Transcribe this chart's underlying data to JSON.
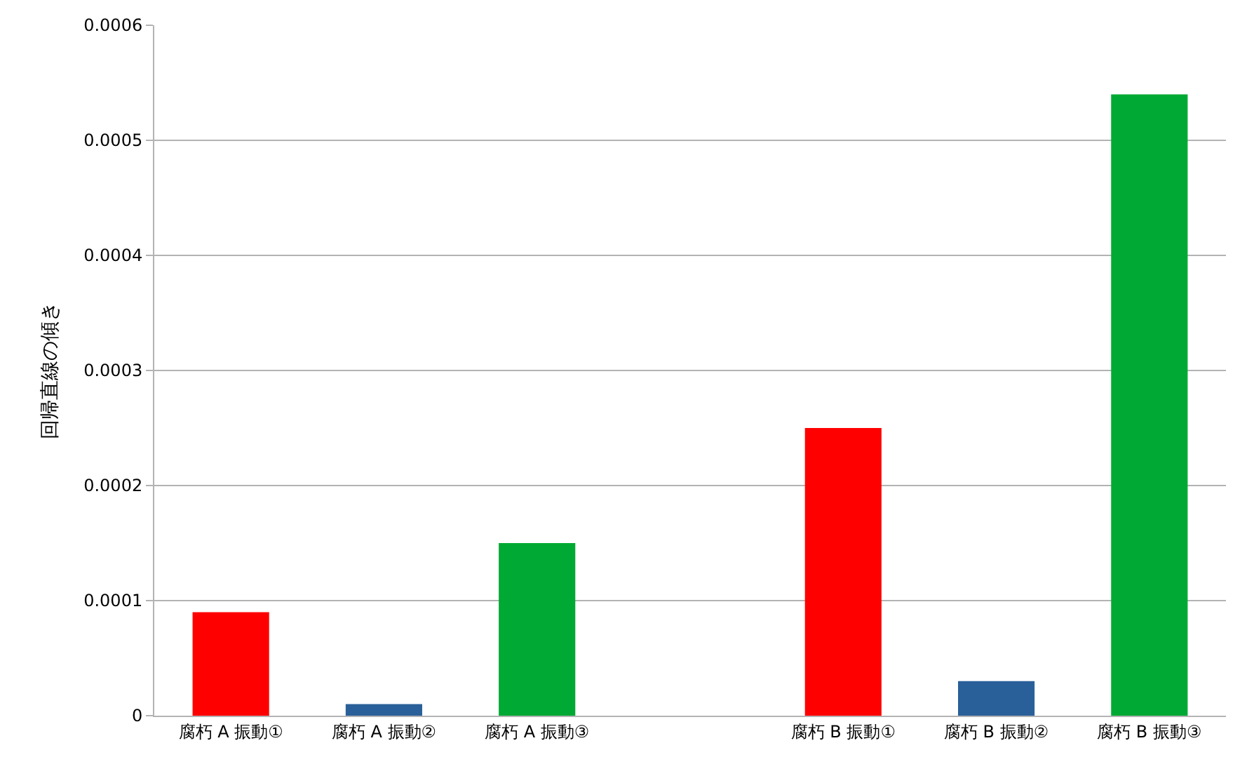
{
  "chart_data": {
    "type": "bar",
    "ylabel": "回帰直線の傾き",
    "categories": [
      "腐朽 A 振動①",
      "腐朽 A 振動②",
      "腐朽 A 振動③",
      null,
      "腐朽 B 振動①",
      "腐朽 B 振動②",
      "腐朽 B 振動③"
    ],
    "values": [
      9e-05,
      1e-05,
      0.00015,
      null,
      0.00025,
      3e-05,
      0.00054
    ],
    "colors": [
      "#ff0000",
      "#2a6099",
      "#00a933",
      null,
      "#ff0000",
      "#2a6099",
      "#00a933"
    ],
    "ylim": [
      0,
      0.0006
    ],
    "yticks": [
      0,
      0.0001,
      0.0002,
      0.0003,
      0.0004,
      0.0005,
      0.0006
    ],
    "grid": "y"
  }
}
